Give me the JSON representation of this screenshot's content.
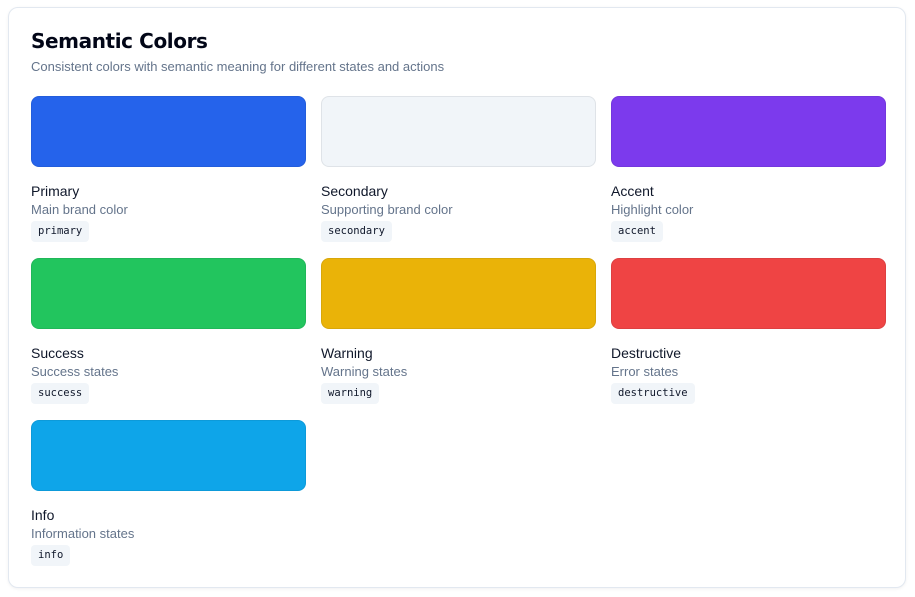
{
  "header": {
    "title": "Semantic Colors",
    "subtitle": "Consistent colors with semantic meaning for different states and actions"
  },
  "colors": [
    {
      "name": "Primary",
      "description": "Main brand color",
      "token": "primary",
      "color": "#2563eb"
    },
    {
      "name": "Secondary",
      "description": "Supporting brand color",
      "token": "secondary",
      "color": "#f1f5f9"
    },
    {
      "name": "Accent",
      "description": "Highlight color",
      "token": "accent",
      "color": "#7c3aed"
    },
    {
      "name": "Success",
      "description": "Success states",
      "token": "success",
      "color": "#22c55e"
    },
    {
      "name": "Warning",
      "description": "Warning states",
      "token": "warning",
      "color": "#eab308"
    },
    {
      "name": "Destructive",
      "description": "Error states",
      "token": "destructive",
      "color": "#ef4444"
    },
    {
      "name": "Info",
      "description": "Information states",
      "token": "info",
      "color": "#0ea5e9"
    }
  ]
}
